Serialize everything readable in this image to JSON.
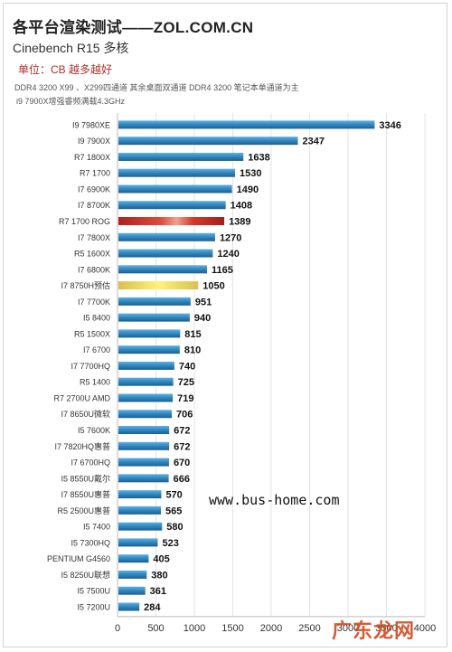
{
  "header": {
    "title": "各平台渲染测试——ZOL.COM.CN",
    "subtitle": "Cinebench R15 多核",
    "unit": "单位：CB 越多越好",
    "note_line1": "DDR4 3200 X99 、X299四通道 其余桌面双通道 DDR4 3200 笔记本单通道为主",
    "note_line2": "i9 7900X增强睿频满载4.3GHz"
  },
  "watermark": "www.bus-home.com",
  "logo": "广东龙网",
  "chart_data": {
    "type": "bar",
    "orientation": "horizontal",
    "categories": [
      "I9 7980XE",
      "I9 7900X",
      "R7 1800X",
      "R7 1700",
      "I7 6900K",
      "I7 8700K",
      "R7 1700 ROG",
      "I7 7800X",
      "R5 1600X",
      "I7 6800K",
      "I7 8750H预估",
      "I7 7700K",
      "I5 8400",
      "R5 1500X",
      "I7 6700",
      "I7 7700HQ",
      "R5 1400",
      "R7 2700U AMD",
      "I7 8650U微软",
      "I5 7600K",
      "I7 7820HQ惠普",
      "I7 6700HQ",
      "I5 8550U戴尔",
      "I7 8550U惠普",
      "R5 2500U惠普",
      "I5 7400",
      "I5 7300HQ",
      "PENTIUM G4560",
      "I5 8250U联想",
      "I5 7500U",
      "I5 7200U"
    ],
    "values": [
      3346,
      2347,
      1638,
      1530,
      1490,
      1408,
      1389,
      1270,
      1240,
      1165,
      1050,
      951,
      940,
      815,
      810,
      740,
      725,
      719,
      706,
      672,
      672,
      670,
      666,
      570,
      565,
      580,
      523,
      405,
      380,
      361,
      284
    ],
    "highlight": {
      "R7 1700 ROG": "red",
      "I7 8750H预估": "yellow"
    },
    "xlim": [
      0,
      4000
    ],
    "xticks": [
      "0",
      "500",
      "1000",
      "1500",
      "2000",
      "2500",
      "3000",
      "3500",
      "4000"
    ],
    "colors": {
      "default": "#2e86c1",
      "red": "#c0392b",
      "yellow": "#e8d25a"
    },
    "grid": true
  }
}
